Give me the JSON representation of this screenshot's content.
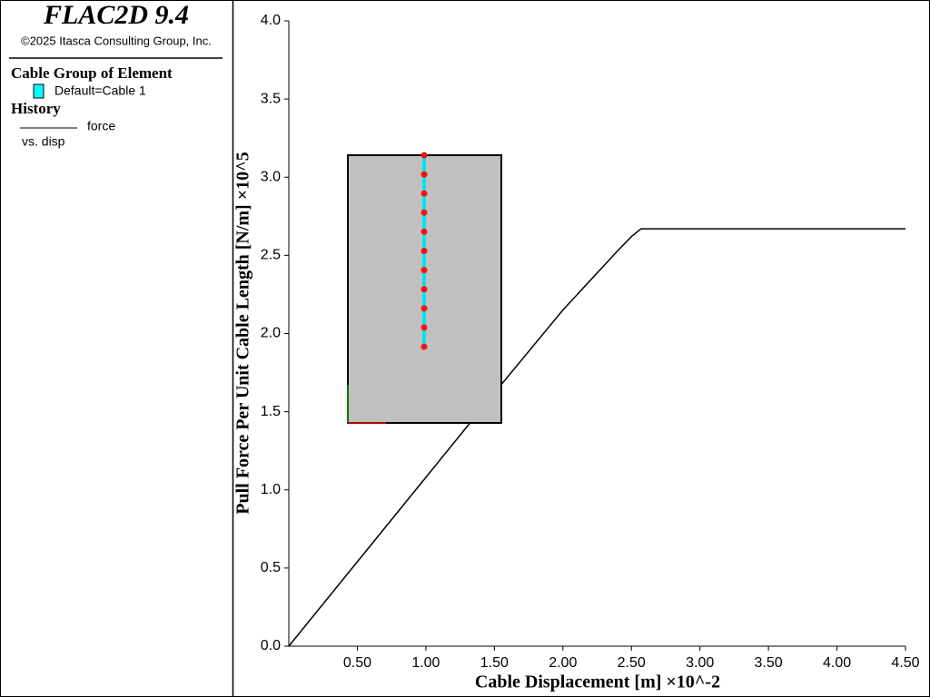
{
  "sidebar": {
    "title": "FLAC2D 9.4",
    "copyright": "©2025 Itasca Consulting Group, Inc.",
    "group_title": "Cable Group of Element",
    "group_item": "Default=Cable 1",
    "history_title": "History",
    "history_name": "force",
    "history_vs": "vs. disp"
  },
  "chart_data": {
    "type": "line",
    "xlabel": "Cable Displacement [m] ×10^-2",
    "ylabel": "Pull Force Per Unit Cable Length [N/m] ×10^5",
    "x": [
      0,
      0.5,
      1.0,
      1.5,
      2.0,
      2.4,
      2.5,
      2.57,
      3.0,
      3.5,
      4.0,
      4.5
    ],
    "series": [
      {
        "name": "force",
        "color": "#000000",
        "values": [
          0,
          0.54,
          1.08,
          1.62,
          2.15,
          2.53,
          2.62,
          2.67,
          2.67,
          2.67,
          2.67,
          2.67
        ]
      }
    ],
    "xlim": [
      0,
      4.5
    ],
    "ylim": [
      0,
      4.0
    ],
    "xticks": [
      {
        "value": 0.5,
        "label": "0.50"
      },
      {
        "value": 1.0,
        "label": "1.00"
      },
      {
        "value": 1.5,
        "label": "1.50"
      },
      {
        "value": 2.0,
        "label": "2.00"
      },
      {
        "value": 2.5,
        "label": "2.50"
      },
      {
        "value": 3.0,
        "label": "3.00"
      },
      {
        "value": 3.5,
        "label": "3.50"
      },
      {
        "value": 4.0,
        "label": "4.00"
      },
      {
        "value": 4.5,
        "label": "4.50"
      }
    ],
    "yticks": [
      {
        "value": 0,
        "label": "0.0"
      },
      0.5,
      {
        "value": 1.0,
        "label": "1.0"
      },
      1.5,
      {
        "value": 2.0,
        "label": "2.0"
      },
      2.5,
      {
        "value": 3.0,
        "label": "3.0"
      },
      3.5,
      {
        "value": 4.0,
        "label": "4.0"
      }
    ]
  }
}
